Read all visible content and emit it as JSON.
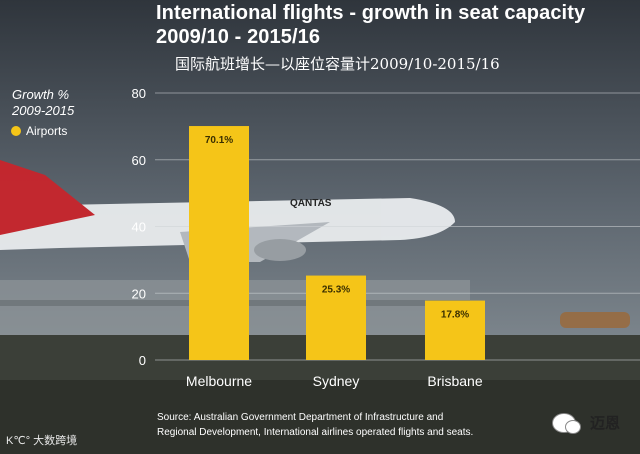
{
  "chart_data": {
    "type": "bar",
    "title": "International flights - growth in seat capacity",
    "subtitle": "2009/10 - 2015/16",
    "title_cn": "国际航班增长—以座位容量计2009/10-2015/16",
    "ylabel": "Growth %",
    "ylabel_sub": "2009-2015",
    "categories": [
      "Melbourne",
      "Sydney",
      "Brisbane"
    ],
    "series": [
      {
        "name": "Airports",
        "values": [
          70.1,
          25.3,
          17.8
        ]
      }
    ],
    "data_labels": [
      "70.1%",
      "25.3%",
      "17.8%"
    ],
    "yticks": [
      "0",
      "20",
      "40",
      "60",
      "80"
    ],
    "ylim": [
      0,
      80
    ],
    "grid": true,
    "legend_position": "top-left",
    "bar_color": "#f5c518",
    "source": [
      "Source: Australian Government Department of Infrastructure and",
      "Regional Development, International airlines operated flights and seats."
    ]
  },
  "watermark": {
    "left_text": "大数跨境",
    "left_logo": "K℃°",
    "right_text": "迈恩",
    "right_icon": "wechat-icon"
  }
}
